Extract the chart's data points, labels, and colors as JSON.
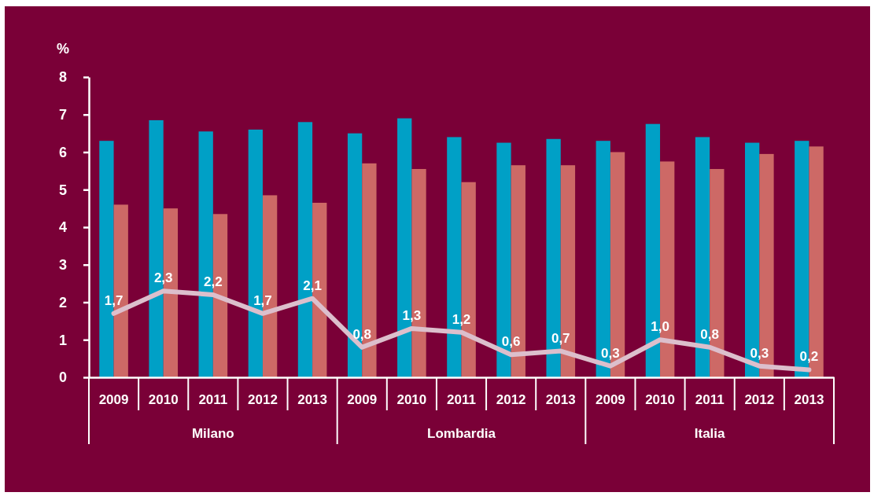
{
  "chart_data": {
    "type": "bar",
    "ylabel": "%",
    "categories": [
      "2009",
      "2010",
      "2011",
      "2012",
      "2013",
      "2009",
      "2010",
      "2011",
      "2012",
      "2013",
      "2009",
      "2010",
      "2011",
      "2012",
      "2013"
    ],
    "series": [
      {
        "color": "#00a0c6",
        "values": [
          6.3,
          6.85,
          6.55,
          6.6,
          6.8,
          6.5,
          6.9,
          6.4,
          6.25,
          6.35,
          6.3,
          6.75,
          6.4,
          6.25,
          6.3
        ]
      },
      {
        "color": "#cd6966",
        "values": [
          4.6,
          4.5,
          4.35,
          4.85,
          4.65,
          5.7,
          5.55,
          5.2,
          5.65,
          5.65,
          6.0,
          5.75,
          5.55,
          5.95,
          6.15
        ]
      },
      {
        "type": "line",
        "color": "#dcbfcc",
        "values": [
          1.7,
          2.3,
          2.2,
          1.7,
          2.1,
          0.8,
          1.3,
          1.2,
          0.6,
          0.7,
          0.3,
          1.0,
          0.8,
          0.3,
          0.2
        ],
        "value_labels": [
          "1,7",
          "2,3",
          "2,2",
          "1,7",
          "2,1",
          "0,8",
          "1,3",
          "1,2",
          "0,6",
          "0,7",
          "0,3",
          "1,0",
          "0,8",
          "0,3",
          "0,2"
        ]
      }
    ],
    "ylim": [
      0,
      8
    ],
    "yticks": [
      0,
      1,
      2,
      3,
      4,
      5,
      6,
      7,
      8
    ],
    "annotations": [
      "Milano",
      "Lombardia",
      "Italia"
    ]
  }
}
